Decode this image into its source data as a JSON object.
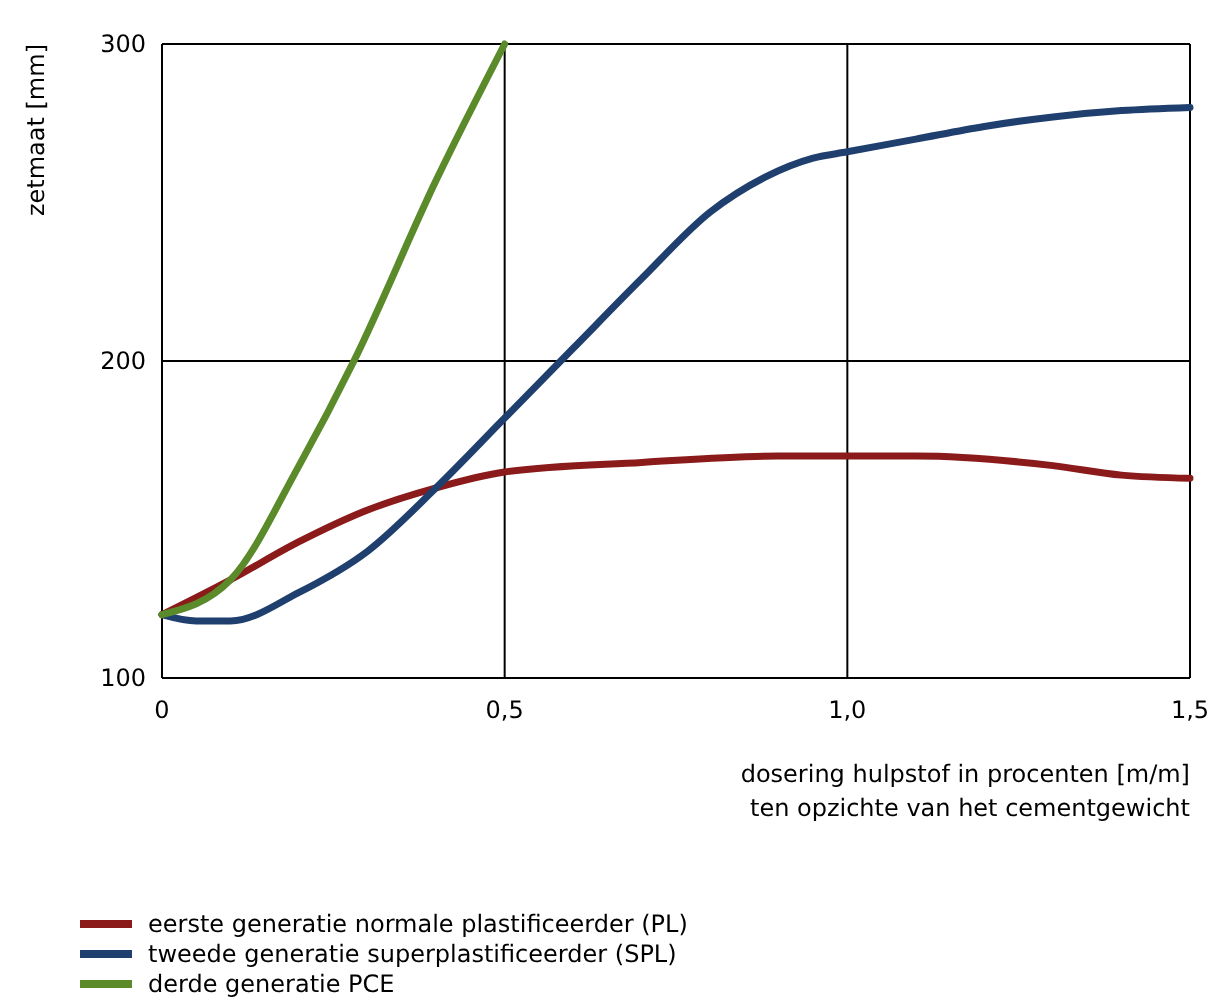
{
  "chart_data": {
    "type": "line",
    "xlabel": "dosering hulpstof in procenten [m/m]\nten opzichte van het cementgewicht",
    "ylabel": "zetmaat [mm]",
    "xlim": [
      0,
      1.5
    ],
    "ylim": [
      100,
      300
    ],
    "xticks": [
      0,
      {
        "value": 0.5,
        "label": "0,5"
      },
      {
        "value": 1,
        "label": "1,0"
      },
      {
        "value": 1.5,
        "label": "1,5"
      }
    ],
    "yticks": [
      100,
      200,
      300
    ],
    "grid": true,
    "legend": "bottom",
    "marker": "none",
    "line_style": "solid",
    "series": [
      {
        "name": "eerste generatie normale plastificeerder (PL)",
        "color": "#8b1a1a",
        "x": [
          0,
          0.1,
          0.2,
          0.3,
          0.4,
          0.5,
          0.7,
          0.9,
          1.1,
          1.3,
          1.4,
          1.5
        ],
        "values": [
          120,
          131,
          143,
          153,
          160,
          165,
          168,
          170,
          170,
          167,
          164,
          163
        ]
      },
      {
        "name": "tweede generatie superplastificeerder (SPL)",
        "color": "#1f3f6e",
        "x": [
          0,
          0.05,
          0.1,
          0.2,
          0.3,
          0.4,
          0.5,
          0.6,
          0.7,
          0.8,
          0.88,
          0.95,
          1.0,
          1.1,
          1.2,
          1.3,
          1.4,
          1.5
        ],
        "values": [
          120,
          118,
          118,
          127,
          140,
          160,
          182,
          204,
          226,
          247,
          258,
          264,
          266,
          270,
          274,
          277,
          279,
          280
        ]
      },
      {
        "name": "derde generatie PCE",
        "color": "#5a8a2a",
        "x": [
          0,
          0.1,
          0.2,
          0.28,
          0.4,
          0.5
        ],
        "values": [
          120,
          131,
          167,
          200,
          257,
          300
        ]
      }
    ]
  }
}
